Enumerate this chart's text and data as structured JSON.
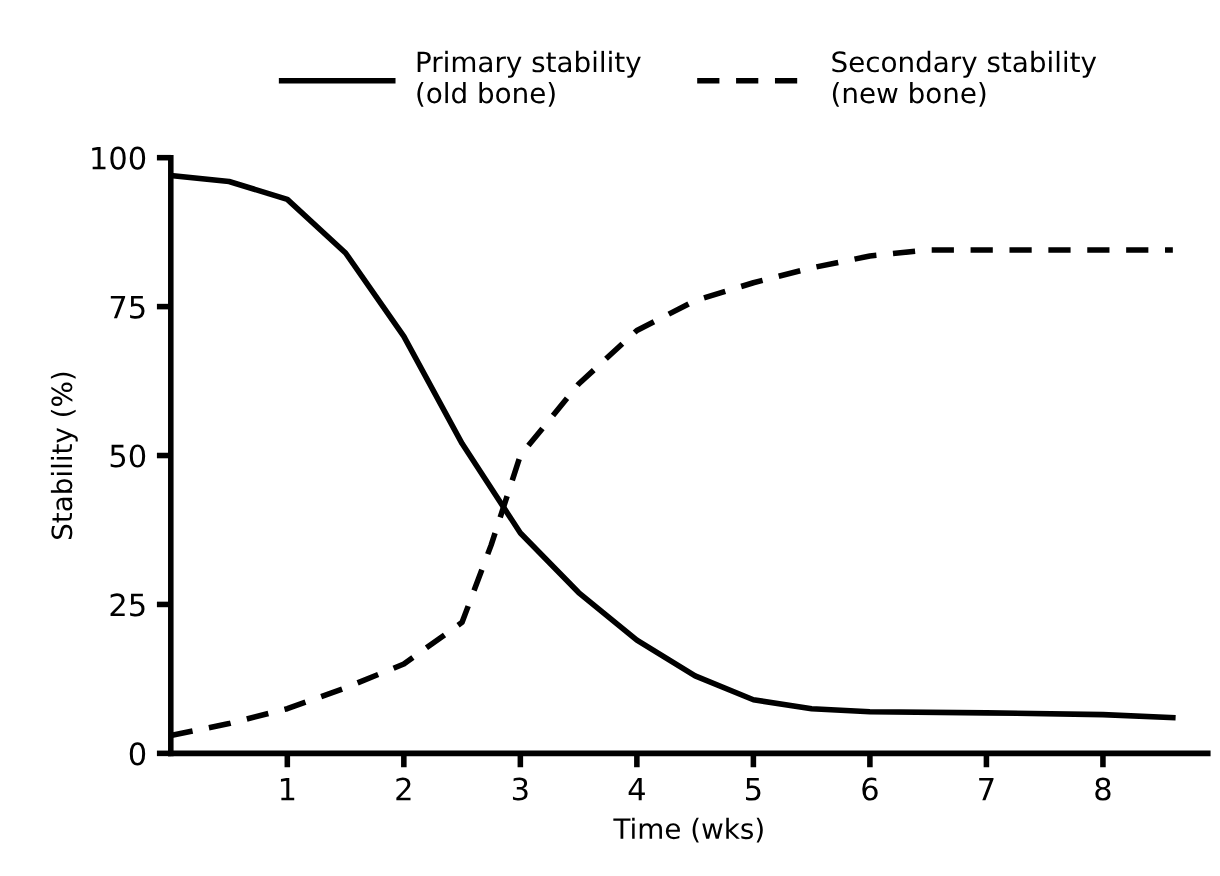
{
  "chart_data": {
    "type": "line",
    "xlabel": "Time (wks)",
    "ylabel": "Stability (%)",
    "xlim": [
      0,
      8.9
    ],
    "ylim": [
      0,
      100
    ],
    "xticks": [
      1,
      2,
      3,
      4,
      5,
      6,
      7,
      8
    ],
    "yticks": [
      0,
      25,
      50,
      75,
      100
    ],
    "grid": false,
    "legend": "top",
    "marker": "none",
    "series": [
      {
        "name": "Primary stability\n(old bone)",
        "color": "#000000",
        "line_style": "solid",
        "x": [
          0,
          0.5,
          1,
          1.5,
          2,
          2.5,
          3,
          3.5,
          4,
          4.5,
          5,
          5.5,
          6,
          7,
          8,
          8.6
        ],
        "values": [
          97,
          96,
          93,
          84,
          70,
          52,
          37,
          27,
          19,
          13,
          9,
          7.5,
          7,
          6.8,
          6.5,
          6
        ]
      },
      {
        "name": "Secondary stability\n(new bone)",
        "color": "#000000",
        "line_style": "dashed",
        "x": [
          0,
          0.5,
          1,
          1.5,
          2,
          2.5,
          2.75,
          3,
          3.5,
          4,
          4.5,
          5,
          5.5,
          6,
          6.5,
          7,
          8,
          8.6
        ],
        "values": [
          3,
          5,
          7.5,
          11,
          15,
          22,
          35,
          50,
          62,
          71,
          76,
          79,
          81.5,
          83.5,
          84.5,
          84.5,
          84.5,
          84.5
        ]
      }
    ]
  }
}
